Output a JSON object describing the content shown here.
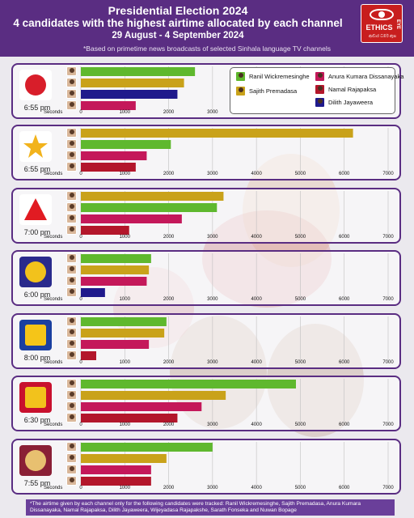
{
  "header": {
    "title": "Presidential Election 2024",
    "subtitle": "4 candidates with the highest airtime allocated by each channel",
    "date_range": "29 August - 4 September 2024",
    "note": "*Based on primetime news broadcasts of selected Sinhala language TV channels"
  },
  "logo": {
    "word": "ETHICS",
    "word2": "EYE",
    "tagline": "ආචාර ධර්ම ඇස"
  },
  "colors": {
    "ranil": "#5fb82e",
    "sajith": "#c9a21a",
    "anura": "#c4185a",
    "namal": "#b3162b",
    "dilith": "#1f1a8c",
    "panel_border": "#5a2d82",
    "header_bg": "#5a2d82"
  },
  "legend": [
    {
      "name": "Ranil Wickremesinghe",
      "color": "#5fb82e"
    },
    {
      "name": "Sajith Premadasa",
      "color": "#c9a21a"
    },
    {
      "name": "Anura Kumara Dissanayaka",
      "color": "#c4185a"
    },
    {
      "name": "Namal Rajapaksa",
      "color": "#b3162b"
    },
    {
      "name": "Dilith Jayaweera",
      "color": "#1f1a8c"
    }
  ],
  "chart_data": [
    {
      "type": "bar",
      "channel_logo": "derana-logo",
      "time": "6:55 pm",
      "xlabel": "Seconds",
      "xlim": [
        0,
        7000
      ],
      "ticks": [
        "0",
        "1000",
        "2000",
        "3000",
        "4000",
        "5000",
        "6000",
        "7000"
      ],
      "bars": [
        {
          "candidate": "Ranil Wickremesinghe",
          "value": 2600,
          "color": "#5fb82e"
        },
        {
          "candidate": "Sajith Premadasa",
          "value": 2350,
          "color": "#c9a21a"
        },
        {
          "candidate": "Dilith Jayaweera",
          "value": 2200,
          "color": "#1f1a8c"
        },
        {
          "candidate": "Anura Kumara Dissanayaka",
          "value": 1250,
          "color": "#c4185a"
        }
      ]
    },
    {
      "type": "bar",
      "channel_logo": "hiru-tv-logo",
      "time": "6:55 pm",
      "xlabel": "Seconds",
      "xlim": [
        0,
        7000
      ],
      "ticks": [
        "0",
        "1000",
        "2000",
        "3000",
        "4000",
        "5000",
        "6000",
        "7000"
      ],
      "bars": [
        {
          "candidate": "Sajith Premadasa",
          "value": 6200,
          "color": "#c9a21a"
        },
        {
          "candidate": "Ranil Wickremesinghe",
          "value": 2050,
          "color": "#5fb82e"
        },
        {
          "candidate": "Anura Kumara Dissanayaka",
          "value": 1500,
          "color": "#c4185a"
        },
        {
          "candidate": "Namal Rajapaksa",
          "value": 1250,
          "color": "#b3162b"
        }
      ]
    },
    {
      "type": "bar",
      "channel_logo": "siyatha-tv-logo",
      "time": "7:00 pm",
      "xlabel": "Seconds",
      "xlim": [
        0,
        7000
      ],
      "ticks": [
        "0",
        "1000",
        "2000",
        "3000",
        "4000",
        "5000",
        "6000",
        "7000"
      ],
      "bars": [
        {
          "candidate": "Sajith Premadasa",
          "value": 3250,
          "color": "#c9a21a"
        },
        {
          "candidate": "Ranil Wickremesinghe",
          "value": 3100,
          "color": "#5fb82e"
        },
        {
          "candidate": "Anura Kumara Dissanayaka",
          "value": 2300,
          "color": "#c4185a"
        },
        {
          "candidate": "Namal Rajapaksa",
          "value": 1100,
          "color": "#b3162b"
        }
      ]
    },
    {
      "type": "bar",
      "channel_logo": "sirasa-tv-logo",
      "time": "6:00 pm",
      "xlabel": "Seconds",
      "xlim": [
        0,
        7000
      ],
      "ticks": [
        "0",
        "1000",
        "2000",
        "3000",
        "4000",
        "5000",
        "6000",
        "7000"
      ],
      "bars": [
        {
          "candidate": "Ranil Wickremesinghe",
          "value": 1600,
          "color": "#5fb82e"
        },
        {
          "candidate": "Sajith Premadasa",
          "value": 1550,
          "color": "#c9a21a"
        },
        {
          "candidate": "Anura Kumara Dissanayaka",
          "value": 1500,
          "color": "#c4185a"
        },
        {
          "candidate": "Dilith Jayaweera",
          "value": 550,
          "color": "#1f1a8c"
        }
      ]
    },
    {
      "type": "bar",
      "channel_logo": "rupavahini-logo",
      "time": "8:00 pm",
      "xlabel": "Seconds",
      "xlim": [
        0,
        7000
      ],
      "ticks": [
        "0",
        "1000",
        "2000",
        "3000",
        "4000",
        "5000",
        "6000",
        "7000"
      ],
      "bars": [
        {
          "candidate": "Ranil Wickremesinghe",
          "value": 1950,
          "color": "#5fb82e"
        },
        {
          "candidate": "Sajith Premadasa",
          "value": 1900,
          "color": "#c9a21a"
        },
        {
          "candidate": "Anura Kumara Dissanayaka",
          "value": 1550,
          "color": "#c4185a"
        },
        {
          "candidate": "Namal Rajapaksa",
          "value": 350,
          "color": "#b3162b"
        }
      ]
    },
    {
      "type": "bar",
      "channel_logo": "itn-srilanka-logo",
      "time": "6:30 pm",
      "xlabel": "Seconds",
      "xlim": [
        0,
        7000
      ],
      "ticks": [
        "0",
        "1000",
        "2000",
        "3000",
        "4000",
        "5000",
        "6000",
        "7000"
      ],
      "bars": [
        {
          "candidate": "Ranil Wickremesinghe",
          "value": 4900,
          "color": "#5fb82e"
        },
        {
          "candidate": "Sajith Premadasa",
          "value": 3300,
          "color": "#c9a21a"
        },
        {
          "candidate": "Anura Kumara Dissanayaka",
          "value": 2750,
          "color": "#c4185a"
        },
        {
          "candidate": "Namal Rajapaksa",
          "value": 2200,
          "color": "#b3162b"
        }
      ]
    },
    {
      "type": "bar",
      "channel_logo": "swarnavahini-logo",
      "time": "7:55 pm",
      "xlabel": "Seconds",
      "xlim": [
        0,
        7000
      ],
      "ticks": [
        "0",
        "1000",
        "2000",
        "3000",
        "4000",
        "5000",
        "6000",
        "7000"
      ],
      "bars": [
        {
          "candidate": "Ranil Wickremesinghe",
          "value": 3000,
          "color": "#5fb82e"
        },
        {
          "candidate": "Sajith Premadasa",
          "value": 1950,
          "color": "#c9a21a"
        },
        {
          "candidate": "Anura Kumara Dissanayaka",
          "value": 1600,
          "color": "#c4185a"
        },
        {
          "candidate": "Namal Rajapaksa",
          "value": 1600,
          "color": "#b3162b"
        }
      ]
    }
  ],
  "footer": {
    "text": "*The airtime given by each channel only for the following candidates were tracked: Ranil Wickremesinghe, Sajith Premadasa, Anura Kumara Dissanayaka, Namal Rajapaksa, Dilith Jayaweera, Wijeyadasa Rajapakshe, Sarath Fonseka and Nuwan Bopage"
  }
}
